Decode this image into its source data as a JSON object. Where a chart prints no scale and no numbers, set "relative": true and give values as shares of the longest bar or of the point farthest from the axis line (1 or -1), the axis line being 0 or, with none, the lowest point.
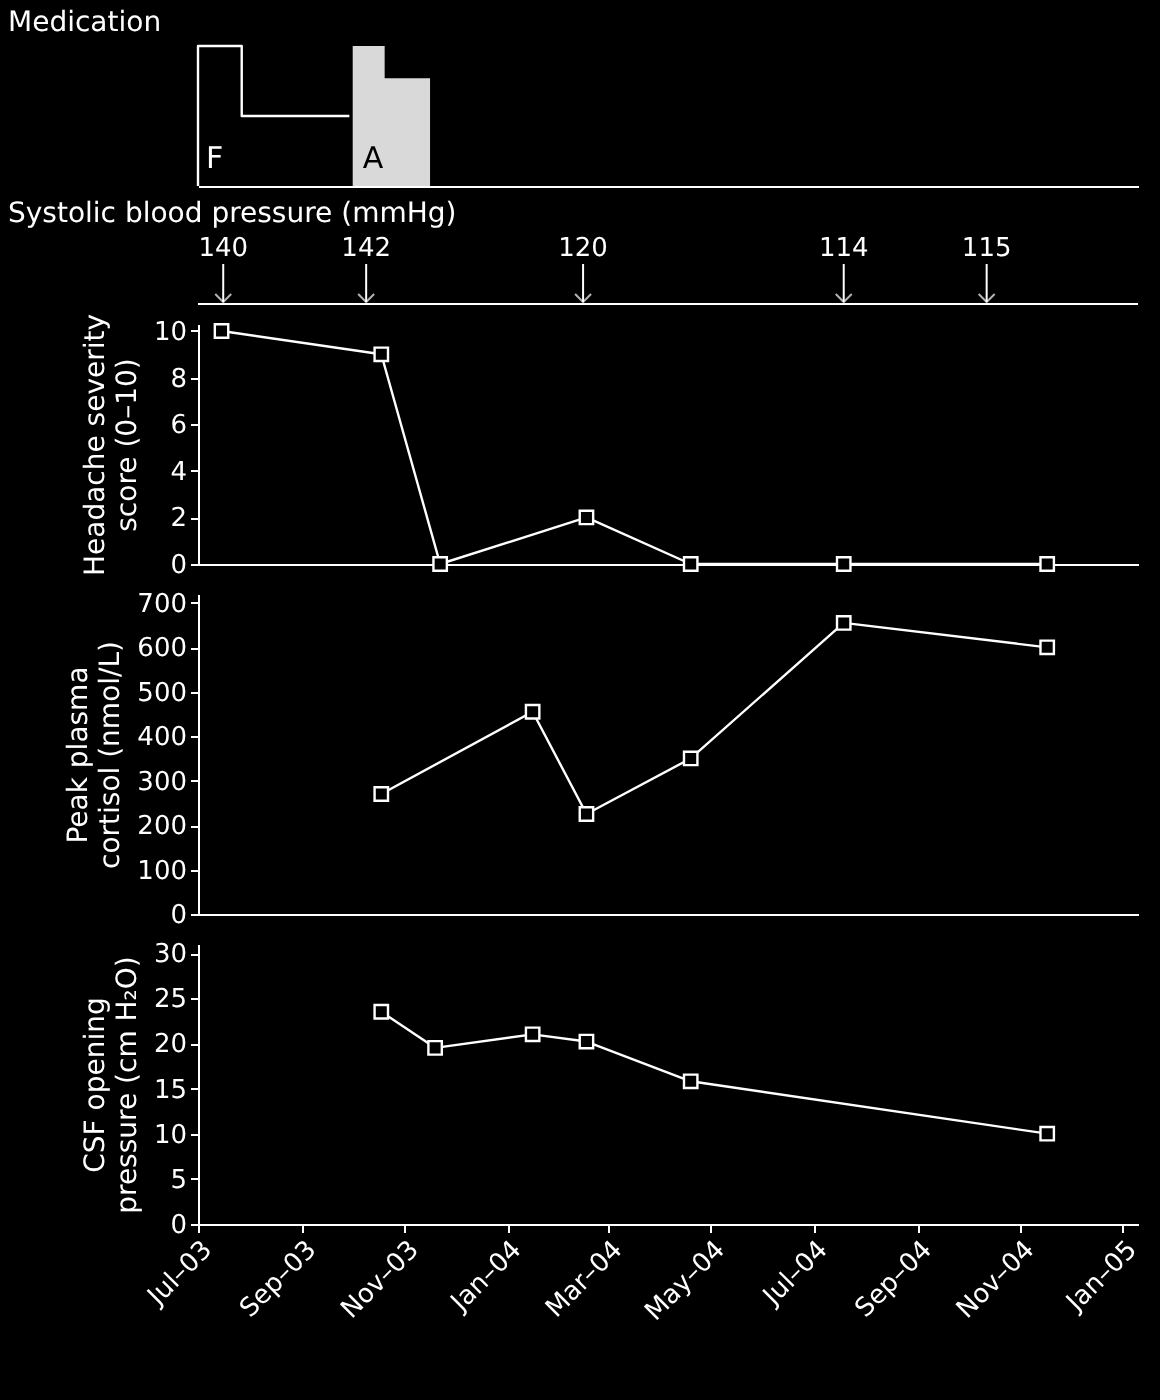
{
  "chart_data": [
    {
      "type": "step",
      "title": "Medication",
      "relative": true,
      "tick_labels": false,
      "xlim": [
        "2003-07-01",
        "2005-01-10"
      ],
      "series": [
        {
          "name": "F",
          "type": "step",
          "color": "#ffffff",
          "x": [
            "2003-07-01",
            "2003-07-01",
            "2003-07-27",
            "2003-09-29"
          ],
          "values": [
            0,
            1,
            0.5,
            0.5
          ]
        },
        {
          "name": "A",
          "type": "area",
          "color": "#d9d9d9",
          "x": [
            "2003-10-01",
            "2003-10-20",
            "2003-11-16"
          ],
          "values": [
            1,
            0.77,
            0.77
          ]
        }
      ]
    },
    {
      "type": "line",
      "title": "Systolic blood pressure (mmHg)",
      "ref_lines": [
        {
          "axis": "x",
          "value": "2003-07-16",
          "label": "140"
        },
        {
          "axis": "x",
          "value": "2003-10-09",
          "label": "142"
        },
        {
          "axis": "x",
          "value": "2004-02-15",
          "label": "120"
        },
        {
          "axis": "x",
          "value": "2004-07-19",
          "label": "114"
        },
        {
          "axis": "x",
          "value": "2004-10-12",
          "label": "115"
        }
      ],
      "ylabel": "Headache severity score (0–10)",
      "tick_labels": "y",
      "marker": "square",
      "line_style": "solid",
      "xlim": [
        "2003-07-01",
        "2005-01-10"
      ],
      "ylim": [
        0,
        10.3
      ],
      "yticks": [
        0,
        2,
        4,
        6,
        8,
        10
      ],
      "series": [
        {
          "color": "#ffffff",
          "x": [
            "2003-07-15",
            "2003-10-18",
            "2003-11-22",
            "2004-02-17",
            "2004-04-19",
            "2004-07-19",
            "2004-11-17"
          ],
          "values": [
            10,
            9,
            0,
            2,
            0,
            0,
            0
          ]
        }
      ]
    },
    {
      "type": "line",
      "ylabel": "Peak plasma cortisol (nmol/L)",
      "tick_labels": "y",
      "marker": "square",
      "line_style": "solid",
      "xlim": [
        "2003-07-01",
        "2005-01-10"
      ],
      "ylim": [
        0,
        720
      ],
      "yticks": [
        0,
        100,
        200,
        300,
        400,
        500,
        600,
        700
      ],
      "series": [
        {
          "color": "#ffffff",
          "x": [
            "2003-10-18",
            "2004-01-16",
            "2004-02-17",
            "2004-04-19",
            "2004-07-19",
            "2004-11-17"
          ],
          "values": [
            270,
            455,
            225,
            350,
            655,
            600
          ]
        }
      ]
    },
    {
      "type": "line",
      "ylabel": "CSF opening pressure (cm H₂O)",
      "marker": "square",
      "line_style": "solid",
      "xlim": [
        "2003-07-01",
        "2005-01-10"
      ],
      "ylim": [
        0,
        31
      ],
      "yticks": [
        0,
        5,
        10,
        15,
        20,
        25,
        30
      ],
      "xticks": [
        {
          "value": "2003-07-01",
          "label": "Jul–03"
        },
        {
          "value": "2003-09-01",
          "label": "Sep–03"
        },
        {
          "value": "2003-11-01",
          "label": "Nov–03"
        },
        {
          "value": "2004-01-01",
          "label": "Jan–04"
        },
        {
          "value": "2004-03-01",
          "label": "Mar–04"
        },
        {
          "value": "2004-05-01",
          "label": "May–04"
        },
        {
          "value": "2004-07-01",
          "label": "Jul–04"
        },
        {
          "value": "2004-09-01",
          "label": "Sep–04"
        },
        {
          "value": "2004-11-01",
          "label": "Nov–04"
        },
        {
          "value": "2005-01-01",
          "label": "Jan–05"
        }
      ],
      "series": [
        {
          "color": "#ffffff",
          "x": [
            "2003-10-18",
            "2003-11-19",
            "2004-01-16",
            "2004-02-17",
            "2004-04-19",
            "2004-11-17"
          ],
          "values": [
            23.5,
            19.5,
            21,
            20.2,
            15.8,
            10
          ]
        }
      ]
    }
  ]
}
